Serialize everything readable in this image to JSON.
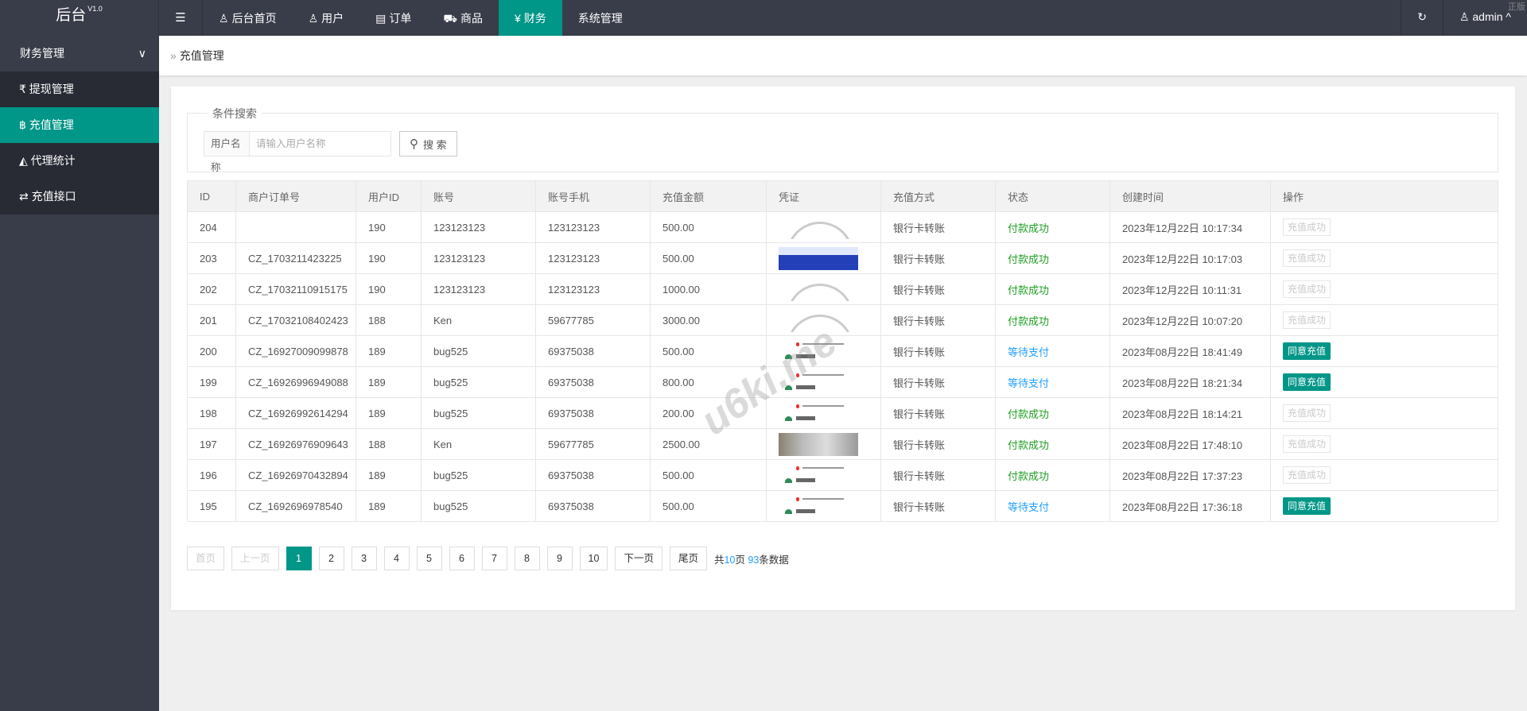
{
  "header": {
    "logo": "后台",
    "version": "V1.0",
    "nav": [
      {
        "icon": "user-icon",
        "label": "后台首页"
      },
      {
        "icon": "user-icon",
        "label": "用户"
      },
      {
        "icon": "file-icon",
        "label": "订单"
      },
      {
        "icon": "cart-icon",
        "label": "商品"
      },
      {
        "icon": "yen-icon",
        "label": "财务"
      },
      {
        "icon": "",
        "label": "系统管理"
      }
    ],
    "active": "财务",
    "user": "admin",
    "corner_text": "正版"
  },
  "sidebar": {
    "group": "财务管理",
    "items": [
      {
        "icon": "rupee-icon",
        "glyph": "₹",
        "label": "提现管理"
      },
      {
        "icon": "bitcoin-icon",
        "glyph": "฿",
        "label": "充值管理",
        "active": true
      },
      {
        "icon": "area-chart-icon",
        "glyph": "◭",
        "label": "代理统计"
      },
      {
        "icon": "exchange-icon",
        "glyph": "⇄",
        "label": "充值接口"
      }
    ]
  },
  "breadcrumb": "充值管理",
  "search": {
    "legend": "条件搜索",
    "field_label": "用户名称",
    "placeholder": "请输入用户名称",
    "value": "",
    "button": "搜 索"
  },
  "table": {
    "columns": [
      "ID",
      "商户订单号",
      "用户ID",
      "账号",
      "账号手机",
      "充值金额",
      "凭证",
      "充值方式",
      "状态",
      "创建时间",
      "操作"
    ],
    "rows": [
      {
        "id": "204",
        "order": "",
        "uid": "190",
        "account": "123123123",
        "phone": "123123123",
        "amount": "500.00",
        "voucher": "arc",
        "method": "银行卡转账",
        "status": "付款成功",
        "status_type": "ok",
        "time": "2023年12月22日 10:17:34",
        "action": "充值成功",
        "action_type": "done"
      },
      {
        "id": "203",
        "order": "CZ_1703211423225",
        "uid": "190",
        "account": "123123123",
        "phone": "123123123",
        "amount": "500.00",
        "voucher": "blue",
        "method": "银行卡转账",
        "status": "付款成功",
        "status_type": "ok",
        "time": "2023年12月22日 10:17:03",
        "action": "充值成功",
        "action_type": "done"
      },
      {
        "id": "202",
        "order": "CZ_17032110915175",
        "uid": "190",
        "account": "123123123",
        "phone": "123123123",
        "amount": "1000.00",
        "voucher": "arc",
        "method": "银行卡转账",
        "status": "付款成功",
        "status_type": "ok",
        "time": "2023年12月22日 10:11:31",
        "action": "充值成功",
        "action_type": "done"
      },
      {
        "id": "201",
        "order": "CZ_17032108402423",
        "uid": "188",
        "account": "Ken",
        "phone": "59677785",
        "amount": "3000.00",
        "voucher": "arc",
        "method": "银行卡转账",
        "status": "付款成功",
        "status_type": "ok",
        "time": "2023年12月22日 10:07:20",
        "action": "充值成功",
        "action_type": "done"
      },
      {
        "id": "200",
        "order": "CZ_16927009099878",
        "uid": "189",
        "account": "bug525",
        "phone": "69375038",
        "amount": "500.00",
        "voucher": "receipt",
        "method": "银行卡转账",
        "status": "等待支付",
        "status_type": "wait",
        "time": "2023年08月22日 18:41:49",
        "action": "同意充值",
        "action_type": "agree"
      },
      {
        "id": "199",
        "order": "CZ_16926996949088",
        "uid": "189",
        "account": "bug525",
        "phone": "69375038",
        "amount": "800.00",
        "voucher": "receipt",
        "method": "银行卡转账",
        "status": "等待支付",
        "status_type": "wait",
        "time": "2023年08月22日 18:21:34",
        "action": "同意充值",
        "action_type": "agree"
      },
      {
        "id": "198",
        "order": "CZ_16926992614294",
        "uid": "189",
        "account": "bug525",
        "phone": "69375038",
        "amount": "200.00",
        "voucher": "receipt",
        "method": "银行卡转账",
        "status": "付款成功",
        "status_type": "ok",
        "time": "2023年08月22日 18:14:21",
        "action": "充值成功",
        "action_type": "done"
      },
      {
        "id": "197",
        "order": "CZ_16926976909643",
        "uid": "188",
        "account": "Ken",
        "phone": "59677785",
        "amount": "2500.00",
        "voucher": "photo",
        "method": "银行卡转账",
        "status": "付款成功",
        "status_type": "ok",
        "time": "2023年08月22日 17:48:10",
        "action": "充值成功",
        "action_type": "done"
      },
      {
        "id": "196",
        "order": "CZ_16926970432894",
        "uid": "189",
        "account": "bug525",
        "phone": "69375038",
        "amount": "500.00",
        "voucher": "receipt",
        "method": "银行卡转账",
        "status": "付款成功",
        "status_type": "ok",
        "time": "2023年08月22日 17:37:23",
        "action": "充值成功",
        "action_type": "done"
      },
      {
        "id": "195",
        "order": "CZ_1692696978540",
        "uid": "189",
        "account": "bug525",
        "phone": "69375038",
        "amount": "500.00",
        "voucher": "receipt",
        "method": "银行卡转账",
        "status": "等待支付",
        "status_type": "wait",
        "time": "2023年08月22日 17:36:18",
        "action": "同意充值",
        "action_type": "agree"
      }
    ]
  },
  "pagination": {
    "first": "首页",
    "prev": "上一页",
    "pages": [
      "1",
      "2",
      "3",
      "4",
      "5",
      "6",
      "7",
      "8",
      "9",
      "10"
    ],
    "current": "1",
    "next": "下一页",
    "last": "尾页",
    "total_prefix": "共",
    "total_pages": "10",
    "total_mid": "页 ",
    "total_count": "93",
    "total_suffix": "条数据"
  },
  "watermark": "u6ki.me",
  "colors": {
    "accent": "#009688",
    "topbar": "#393d49",
    "success": "#1e9f22",
    "pending": "#1e9fff"
  }
}
